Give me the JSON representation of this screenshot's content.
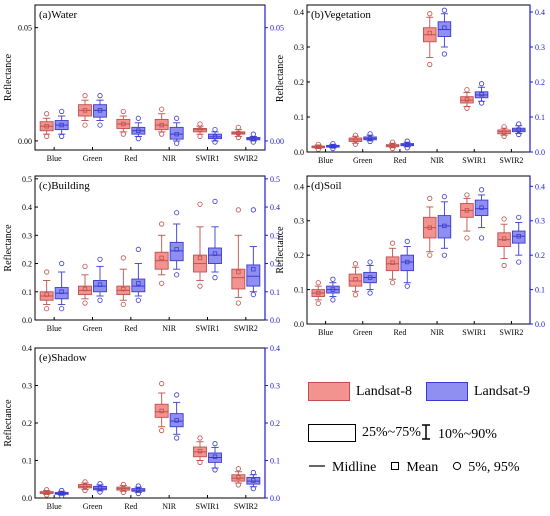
{
  "legend": {
    "l8": "Landsat-8",
    "l9": "Landsat-9",
    "iqr": "25%~75%",
    "whisker": "10%~90%",
    "midline": "Midline",
    "mean": "Mean",
    "outliers": "5%, 95%"
  },
  "colors": {
    "landsat8_fill": "#f2938f",
    "landsat8_edge": "#c0504d",
    "landsat9_fill": "#8f8ff2",
    "landsat9_edge": "#3a3ad0",
    "right_axis": "#1b1bd6"
  },
  "chart_data": [
    {
      "type": "box",
      "title": "(a)Water",
      "ylabel": "Reflectance",
      "categories": [
        "Blue",
        "Green",
        "Red",
        "NIR",
        "SWIR1",
        "SWIR2"
      ],
      "ylim": [
        -0.004,
        0.06
      ],
      "yticks": [
        0.0,
        0.05
      ],
      "ytick_labels": [
        "0.00",
        "0.05"
      ],
      "right_axis": true,
      "series": [
        {
          "name": "Landsat-8",
          "boxes": [
            {
              "p5": 0.002,
              "p10": 0.003,
              "q1": 0.0045,
              "median": 0.0065,
              "q3": 0.0085,
              "p90": 0.01,
              "p95": 0.012,
              "mean": 0.0065
            },
            {
              "p5": 0.007,
              "p10": 0.009,
              "q1": 0.011,
              "median": 0.0135,
              "q3": 0.016,
              "p90": 0.018,
              "p95": 0.02,
              "mean": 0.0135
            },
            {
              "p5": 0.003,
              "p10": 0.004,
              "q1": 0.0055,
              "median": 0.0075,
              "q3": 0.0095,
              "p90": 0.011,
              "p95": 0.013,
              "mean": 0.0075
            },
            {
              "p5": 0.003,
              "p10": 0.004,
              "q1": 0.005,
              "median": 0.007,
              "q3": 0.0095,
              "p90": 0.012,
              "p95": 0.014,
              "mean": 0.007
            },
            {
              "p5": 0.002,
              "p10": 0.003,
              "q1": 0.004,
              "median": 0.005,
              "q3": 0.0055,
              "p90": 0.0065,
              "p95": 0.0075,
              "mean": 0.005
            },
            {
              "p5": 0.0015,
              "p10": 0.002,
              "q1": 0.003,
              "median": 0.0035,
              "q3": 0.004,
              "p90": 0.005,
              "p95": 0.006,
              "mean": 0.0035
            }
          ]
        },
        {
          "name": "Landsat-9",
          "boxes": [
            {
              "p5": 0.002,
              "p10": 0.003,
              "q1": 0.005,
              "median": 0.007,
              "q3": 0.009,
              "p90": 0.011,
              "p95": 0.013,
              "mean": 0.007
            },
            {
              "p5": 0.007,
              "p10": 0.009,
              "q1": 0.0105,
              "median": 0.0135,
              "q3": 0.016,
              "p90": 0.018,
              "p95": 0.02,
              "mean": 0.0135
            },
            {
              "p5": 0.001,
              "p10": 0.002,
              "q1": 0.003,
              "median": 0.0045,
              "q3": 0.006,
              "p90": 0.008,
              "p95": 0.01,
              "mean": 0.0045
            },
            {
              "p5": -0.001,
              "p10": 0.0,
              "q1": 0.0008,
              "median": 0.003,
              "q3": 0.006,
              "p90": 0.008,
              "p95": 0.01,
              "mean": 0.003
            },
            {
              "p5": -0.0005,
              "p10": 0.0,
              "q1": 0.001,
              "median": 0.0018,
              "q3": 0.003,
              "p90": 0.004,
              "p95": 0.005,
              "mean": 0.0018
            },
            {
              "p5": -0.0005,
              "p10": 0.0,
              "q1": 0.0005,
              "median": 0.001,
              "q3": 0.0015,
              "p90": 0.002,
              "p95": 0.003,
              "mean": 0.001
            }
          ]
        }
      ]
    },
    {
      "type": "box",
      "title": "(b)Vegetation",
      "ylabel": "Reflectance",
      "categories": [
        "Blue",
        "Green",
        "Red",
        "NIR",
        "SWIR1",
        "SWIR2"
      ],
      "ylim": [
        0.0,
        0.42
      ],
      "yticks": [
        0.0,
        0.1,
        0.2,
        0.3,
        0.4
      ],
      "ytick_labels": [
        "0.0",
        "0.1",
        "0.2",
        "0.3",
        "0.4"
      ],
      "right_axis": true,
      "series": [
        {
          "name": "Landsat-8",
          "boxes": [
            {
              "p5": 0.008,
              "p10": 0.01,
              "q1": 0.012,
              "median": 0.015,
              "q3": 0.017,
              "p90": 0.02,
              "p95": 0.022,
              "mean": 0.015
            },
            {
              "p5": 0.022,
              "p10": 0.025,
              "q1": 0.03,
              "median": 0.035,
              "q3": 0.04,
              "p90": 0.045,
              "p95": 0.048,
              "mean": 0.035
            },
            {
              "p5": 0.01,
              "p10": 0.012,
              "q1": 0.015,
              "median": 0.018,
              "q3": 0.021,
              "p90": 0.025,
              "p95": 0.028,
              "mean": 0.018
            },
            {
              "p5": 0.25,
              "p10": 0.27,
              "q1": 0.315,
              "median": 0.335,
              "q3": 0.355,
              "p90": 0.385,
              "p95": 0.395,
              "mean": 0.34
            },
            {
              "p5": 0.125,
              "p10": 0.13,
              "q1": 0.14,
              "median": 0.148,
              "q3": 0.158,
              "p90": 0.17,
              "p95": 0.178,
              "mean": 0.15
            },
            {
              "p5": 0.045,
              "p10": 0.048,
              "q1": 0.052,
              "median": 0.058,
              "q3": 0.063,
              "p90": 0.068,
              "p95": 0.072,
              "mean": 0.058
            }
          ]
        },
        {
          "name": "Landsat-9",
          "boxes": [
            {
              "p5": 0.01,
              "p10": 0.012,
              "q1": 0.014,
              "median": 0.016,
              "q3": 0.019,
              "p90": 0.022,
              "p95": 0.024,
              "mean": 0.016
            },
            {
              "p5": 0.03,
              "p10": 0.032,
              "q1": 0.035,
              "median": 0.039,
              "q3": 0.043,
              "p90": 0.048,
              "p95": 0.052,
              "mean": 0.039
            },
            {
              "p5": 0.012,
              "p10": 0.015,
              "q1": 0.018,
              "median": 0.021,
              "q3": 0.024,
              "p90": 0.028,
              "p95": 0.031,
              "mean": 0.021
            },
            {
              "p5": 0.28,
              "p10": 0.3,
              "q1": 0.33,
              "median": 0.35,
              "q3": 0.372,
              "p90": 0.395,
              "p95": 0.405,
              "mean": 0.355
            },
            {
              "p5": 0.14,
              "p10": 0.145,
              "q1": 0.155,
              "median": 0.163,
              "q3": 0.172,
              "p90": 0.185,
              "p95": 0.195,
              "mean": 0.165
            },
            {
              "p5": 0.05,
              "p10": 0.053,
              "q1": 0.058,
              "median": 0.063,
              "q3": 0.068,
              "p90": 0.075,
              "p95": 0.08,
              "mean": 0.064
            }
          ]
        }
      ]
    },
    {
      "type": "box",
      "title": "(c)Building",
      "ylabel": "Reflectance",
      "categories": [
        "Blue",
        "Green",
        "Red",
        "NIR",
        "SWIR1",
        "SWIR2"
      ],
      "ylim": [
        0.0,
        0.51
      ],
      "yticks": [
        0.0,
        0.1,
        0.2,
        0.3,
        0.4,
        0.5
      ],
      "ytick_labels": [
        "0.0",
        "0.1",
        "0.2",
        "0.3",
        "0.4",
        "0.5"
      ],
      "right_axis": true,
      "series": [
        {
          "name": "Landsat-8",
          "boxes": [
            {
              "p5": 0.04,
              "p10": 0.055,
              "q1": 0.07,
              "median": 0.085,
              "q3": 0.1,
              "p90": 0.14,
              "p95": 0.17,
              "mean": 0.09
            },
            {
              "p5": 0.06,
              "p10": 0.075,
              "q1": 0.09,
              "median": 0.105,
              "q3": 0.12,
              "p90": 0.16,
              "p95": 0.19,
              "mean": 0.11
            },
            {
              "p5": 0.055,
              "p10": 0.07,
              "q1": 0.09,
              "median": 0.105,
              "q3": 0.12,
              "p90": 0.18,
              "p95": 0.22,
              "mean": 0.11
            },
            {
              "p5": 0.13,
              "p10": 0.16,
              "q1": 0.18,
              "median": 0.21,
              "q3": 0.24,
              "p90": 0.3,
              "p95": 0.34,
              "mean": 0.22
            },
            {
              "p5": 0.12,
              "p10": 0.14,
              "q1": 0.17,
              "median": 0.2,
              "q3": 0.23,
              "p90": 0.33,
              "p95": 0.41,
              "mean": 0.22
            },
            {
              "p5": 0.06,
              "p10": 0.08,
              "q1": 0.11,
              "median": 0.15,
              "q3": 0.18,
              "p90": 0.3,
              "p95": 0.39,
              "mean": 0.17
            }
          ]
        },
        {
          "name": "Landsat-9",
          "boxes": [
            {
              "p5": 0.04,
              "p10": 0.055,
              "q1": 0.075,
              "median": 0.095,
              "q3": 0.115,
              "p90": 0.17,
              "p95": 0.2,
              "mean": 0.1
            },
            {
              "p5": 0.07,
              "p10": 0.085,
              "q1": 0.1,
              "median": 0.12,
              "q3": 0.14,
              "p90": 0.19,
              "p95": 0.215,
              "mean": 0.125
            },
            {
              "p5": 0.07,
              "p10": 0.085,
              "q1": 0.1,
              "median": 0.12,
              "q3": 0.145,
              "p90": 0.2,
              "p95": 0.25,
              "mean": 0.13
            },
            {
              "p5": 0.16,
              "p10": 0.18,
              "q1": 0.21,
              "median": 0.245,
              "q3": 0.275,
              "p90": 0.34,
              "p95": 0.38,
              "mean": 0.25
            },
            {
              "p5": 0.15,
              "p10": 0.17,
              "q1": 0.2,
              "median": 0.23,
              "q3": 0.255,
              "p90": 0.33,
              "p95": 0.42,
              "mean": 0.235
            },
            {
              "p5": 0.09,
              "p10": 0.1,
              "q1": 0.12,
              "median": 0.155,
              "q3": 0.195,
              "p90": 0.26,
              "p95": 0.39,
              "mean": 0.18
            }
          ]
        }
      ]
    },
    {
      "type": "box",
      "title": "(d)Soil",
      "ylabel": "Reflectance",
      "categories": [
        "Blue",
        "Green",
        "Red",
        "NIR",
        "SWIR1",
        "SWIR2"
      ],
      "ylim": [
        0.0,
        0.43
      ],
      "yticks": [
        0.0,
        0.1,
        0.2,
        0.3,
        0.4
      ],
      "ytick_labels": [
        "0.0",
        "0.1",
        "0.2",
        "0.3",
        "0.4"
      ],
      "right_axis": true,
      "series": [
        {
          "name": "Landsat-8",
          "boxes": [
            {
              "p5": 0.06,
              "p10": 0.07,
              "q1": 0.08,
              "median": 0.09,
              "q3": 0.1,
              "p90": 0.11,
              "p95": 0.12,
              "mean": 0.09
            },
            {
              "p5": 0.085,
              "p10": 0.095,
              "q1": 0.11,
              "median": 0.125,
              "q3": 0.145,
              "p90": 0.165,
              "p95": 0.175,
              "mean": 0.13
            },
            {
              "p5": 0.12,
              "p10": 0.13,
              "q1": 0.155,
              "median": 0.175,
              "q3": 0.195,
              "p90": 0.22,
              "p95": 0.235,
              "mean": 0.178
            },
            {
              "p5": 0.2,
              "p10": 0.21,
              "q1": 0.25,
              "median": 0.28,
              "q3": 0.31,
              "p90": 0.34,
              "p95": 0.365,
              "mean": 0.28
            },
            {
              "p5": 0.25,
              "p10": 0.27,
              "q1": 0.31,
              "median": 0.33,
              "q3": 0.35,
              "p90": 0.365,
              "p95": 0.375,
              "mean": 0.33
            },
            {
              "p5": 0.17,
              "p10": 0.19,
              "q1": 0.225,
              "median": 0.245,
              "q3": 0.265,
              "p90": 0.29,
              "p95": 0.305,
              "mean": 0.248
            }
          ]
        },
        {
          "name": "Landsat-9",
          "boxes": [
            {
              "p5": 0.07,
              "p10": 0.08,
              "q1": 0.09,
              "median": 0.1,
              "q3": 0.11,
              "p90": 0.12,
              "p95": 0.13,
              "mean": 0.1
            },
            {
              "p5": 0.09,
              "p10": 0.1,
              "q1": 0.12,
              "median": 0.135,
              "q3": 0.15,
              "p90": 0.17,
              "p95": 0.18,
              "mean": 0.135
            },
            {
              "p5": 0.11,
              "p10": 0.12,
              "q1": 0.155,
              "median": 0.18,
              "q3": 0.2,
              "p90": 0.225,
              "p95": 0.24,
              "mean": 0.18
            },
            {
              "p5": 0.2,
              "p10": 0.22,
              "q1": 0.25,
              "median": 0.285,
              "q3": 0.315,
              "p90": 0.355,
              "p95": 0.37,
              "mean": 0.285
            },
            {
              "p5": 0.25,
              "p10": 0.28,
              "q1": 0.315,
              "median": 0.335,
              "q3": 0.36,
              "p90": 0.375,
              "p95": 0.39,
              "mean": 0.338
            },
            {
              "p5": 0.18,
              "p10": 0.2,
              "q1": 0.235,
              "median": 0.255,
              "q3": 0.27,
              "p90": 0.295,
              "p95": 0.31,
              "mean": 0.255
            }
          ]
        }
      ]
    },
    {
      "type": "box",
      "title": "(e)Shadow",
      "ylabel": "Reflectance",
      "categories": [
        "Blue",
        "Green",
        "Red",
        "NIR",
        "SWIR1",
        "SWIR2"
      ],
      "ylim": [
        0.0,
        0.4
      ],
      "yticks": [
        0.0,
        0.1,
        0.2,
        0.3,
        0.4
      ],
      "ytick_labels": [
        "0.0",
        "0.1",
        "0.2",
        "0.3",
        "0.4"
      ],
      "right_axis": true,
      "series": [
        {
          "name": "Landsat-8",
          "boxes": [
            {
              "p5": 0.008,
              "p10": 0.01,
              "q1": 0.012,
              "median": 0.014,
              "q3": 0.017,
              "p90": 0.02,
              "p95": 0.022,
              "mean": 0.014
            },
            {
              "p5": 0.02,
              "p10": 0.023,
              "q1": 0.027,
              "median": 0.031,
              "q3": 0.036,
              "p90": 0.04,
              "p95": 0.043,
              "mean": 0.032
            },
            {
              "p5": 0.015,
              "p10": 0.018,
              "q1": 0.021,
              "median": 0.025,
              "q3": 0.029,
              "p90": 0.033,
              "p95": 0.036,
              "mean": 0.025
            },
            {
              "p5": 0.18,
              "p10": 0.19,
              "q1": 0.215,
              "median": 0.23,
              "q3": 0.25,
              "p90": 0.28,
              "p95": 0.305,
              "mean": 0.232
            },
            {
              "p5": 0.095,
              "p10": 0.1,
              "q1": 0.11,
              "median": 0.123,
              "q3": 0.136,
              "p90": 0.15,
              "p95": 0.16,
              "mean": 0.125
            },
            {
              "p5": 0.035,
              "p10": 0.04,
              "q1": 0.045,
              "median": 0.053,
              "q3": 0.062,
              "p90": 0.07,
              "p95": 0.078,
              "mean": 0.055
            }
          ]
        },
        {
          "name": "Landsat-9",
          "boxes": [
            {
              "p5": 0.006,
              "p10": 0.008,
              "q1": 0.01,
              "median": 0.012,
              "q3": 0.015,
              "p90": 0.018,
              "p95": 0.02,
              "mean": 0.012
            },
            {
              "p5": 0.016,
              "p10": 0.019,
              "q1": 0.022,
              "median": 0.026,
              "q3": 0.031,
              "p90": 0.035,
              "p95": 0.038,
              "mean": 0.027
            },
            {
              "p5": 0.012,
              "p10": 0.015,
              "q1": 0.018,
              "median": 0.021,
              "q3": 0.025,
              "p90": 0.029,
              "p95": 0.032,
              "mean": 0.022
            },
            {
              "p5": 0.16,
              "p10": 0.17,
              "q1": 0.19,
              "median": 0.205,
              "q3": 0.225,
              "p90": 0.255,
              "p95": 0.275,
              "mean": 0.207
            },
            {
              "p5": 0.075,
              "p10": 0.08,
              "q1": 0.095,
              "median": 0.108,
              "q3": 0.12,
              "p90": 0.135,
              "p95": 0.145,
              "mean": 0.11
            },
            {
              "p5": 0.025,
              "p10": 0.03,
              "q1": 0.037,
              "median": 0.045,
              "q3": 0.055,
              "p90": 0.062,
              "p95": 0.068,
              "mean": 0.047
            }
          ]
        }
      ]
    }
  ]
}
